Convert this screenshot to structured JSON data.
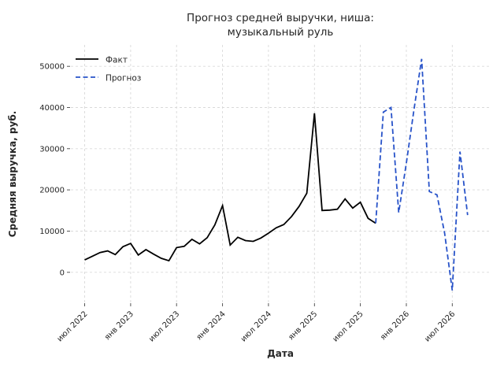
{
  "figure": {
    "background": "#ffffff",
    "text_color": "#262626"
  },
  "chart_data": {
    "type": "line",
    "title": "Прогноз средней выручки, ниша: музыкальный руль",
    "title_lines": [
      "Прогноз средней выручки, ниша:",
      "музыкальный руль"
    ],
    "xlabel": "Дата",
    "ylabel": "Средняя выручка, руб.",
    "x_base_month": "2022-07",
    "xlim_months": [
      -1.8,
      52.9
    ],
    "ylim": [
      -7500,
      55200
    ],
    "y_ticks": [
      0,
      10000,
      20000,
      30000,
      40000,
      50000
    ],
    "x_ticks": [
      {
        "month": "2022-07",
        "label": "июл 2022"
      },
      {
        "month": "2023-01",
        "label": "янв 2023"
      },
      {
        "month": "2023-07",
        "label": "июл 2023"
      },
      {
        "month": "2024-01",
        "label": "янв 2024"
      },
      {
        "month": "2024-07",
        "label": "июл 2024"
      },
      {
        "month": "2025-01",
        "label": "янв 2025"
      },
      {
        "month": "2025-07",
        "label": "июл 2025"
      },
      {
        "month": "2026-01",
        "label": "янв 2026"
      },
      {
        "month": "2026-07",
        "label": "июл 2026"
      }
    ],
    "grid": {
      "show": true,
      "color": "#d9d9d9",
      "dash": "3 3"
    },
    "legend": {
      "position": "upper left",
      "entries": [
        {
          "label": "Факт",
          "series": "fact"
        },
        {
          "label": "Прогноз",
          "series": "forecast"
        }
      ]
    },
    "series": [
      {
        "id": "fact",
        "name": "Факт",
        "color": "#000000",
        "line_style": "solid",
        "x": [
          "2022-07",
          "2022-08",
          "2022-09",
          "2022-10",
          "2022-11",
          "2022-12",
          "2023-01",
          "2023-02",
          "2023-03",
          "2023-04",
          "2023-05",
          "2023-06",
          "2023-07",
          "2023-08",
          "2023-09",
          "2023-10",
          "2023-11",
          "2023-12",
          "2024-01",
          "2024-02",
          "2024-03",
          "2024-04",
          "2024-05",
          "2024-06",
          "2024-07",
          "2024-08",
          "2024-09",
          "2024-10",
          "2024-11",
          "2024-12",
          "2025-01",
          "2025-02",
          "2025-03",
          "2025-04",
          "2025-05",
          "2025-06",
          "2025-07",
          "2025-08",
          "2025-09"
        ],
        "values": [
          3000,
          3900,
          4800,
          5200,
          4300,
          6200,
          7000,
          4200,
          5500,
          4400,
          3400,
          2800,
          6000,
          6300,
          8000,
          6900,
          8400,
          11500,
          16200,
          6600,
          8500,
          7700,
          7500,
          8300,
          9500,
          10800,
          11600,
          13500,
          16000,
          19200,
          38600,
          15000,
          15100,
          15300,
          17800,
          15600,
          17000,
          13100,
          11900
        ]
      },
      {
        "id": "forecast",
        "name": "Прогноз",
        "color": "#2853c9",
        "line_style": "dashed",
        "x": [
          "2025-09",
          "2025-10",
          "2025-11",
          "2025-12",
          "2026-01",
          "2026-02",
          "2026-03",
          "2026-04",
          "2026-05",
          "2026-06",
          "2026-07",
          "2026-08",
          "2026-09"
        ],
        "values": [
          11900,
          38900,
          40000,
          14500,
          26500,
          39500,
          51800,
          19600,
          18800,
          9500,
          -4400,
          29300,
          13900
        ]
      }
    ]
  }
}
